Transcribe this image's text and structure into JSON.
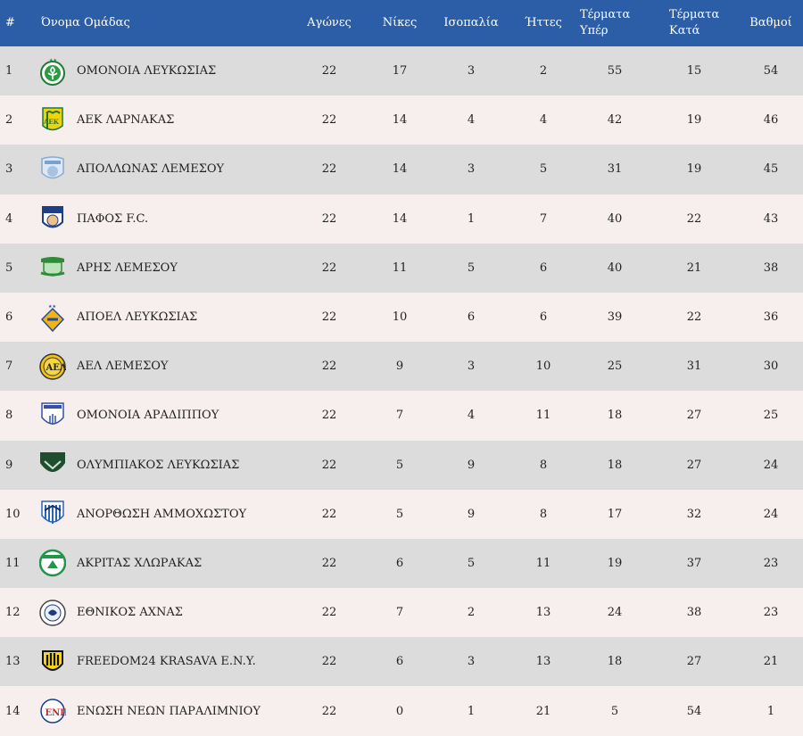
{
  "headers": {
    "pos": "#",
    "team": "Όνομα Ομάδας",
    "played": "Αγώνες",
    "wins": "Νίκες",
    "draws": "Ισοπαλία",
    "losses": "Ήττες",
    "gf_line1": "Τέρματα",
    "gf_line2": "Υπέρ",
    "ga_line1": "Τέρματα",
    "ga_line2": "Κατά",
    "points": "Βαθμοί"
  },
  "rows": [
    {
      "pos": "1",
      "team": "ΟΜΟΝΟΙΑ ΛΕΥΚΩΣΙΑΣ",
      "crest": "omonoia-crest-icon",
      "played": "22",
      "wins": "17",
      "draws": "3",
      "losses": "2",
      "gf": "55",
      "ga": "15",
      "points": "54"
    },
    {
      "pos": "2",
      "team": "ΑΕΚ ΛΑΡΝΑΚΑΣ",
      "crest": "aek-crest-icon",
      "played": "22",
      "wins": "14",
      "draws": "4",
      "losses": "4",
      "gf": "42",
      "ga": "19",
      "points": "46"
    },
    {
      "pos": "3",
      "team": "ΑΠΟΛΛΩΝΑΣ ΛΕΜΕΣΟΥ",
      "crest": "apollon-crest-icon",
      "played": "22",
      "wins": "14",
      "draws": "3",
      "losses": "5",
      "gf": "31",
      "ga": "19",
      "points": "45"
    },
    {
      "pos": "4",
      "team": "ΠΑΦΟΣ F.C.",
      "crest": "pafos-crest-icon",
      "played": "22",
      "wins": "14",
      "draws": "1",
      "losses": "7",
      "gf": "40",
      "ga": "22",
      "points": "43"
    },
    {
      "pos": "5",
      "team": "ΑΡΗΣ ΛΕΜΕΣΟΥ",
      "crest": "aris-crest-icon",
      "played": "22",
      "wins": "11",
      "draws": "5",
      "losses": "6",
      "gf": "40",
      "ga": "21",
      "points": "38"
    },
    {
      "pos": "6",
      "team": "ΑΠΟΕΛ ΛΕΥΚΩΣΙΑΣ",
      "crest": "apoel-crest-icon",
      "played": "22",
      "wins": "10",
      "draws": "6",
      "losses": "6",
      "gf": "39",
      "ga": "22",
      "points": "36"
    },
    {
      "pos": "7",
      "team": "ΑΕΛ ΛΕΜΕΣΟΥ",
      "crest": "ael-crest-icon",
      "played": "22",
      "wins": "9",
      "draws": "3",
      "losses": "10",
      "gf": "25",
      "ga": "31",
      "points": "30"
    },
    {
      "pos": "8",
      "team": "ΟΜΟΝΟΙΑ ΑΡΑΔΙΠΠΟΥ",
      "crest": "omonoia-aradippou-crest-icon",
      "played": "22",
      "wins": "7",
      "draws": "4",
      "losses": "11",
      "gf": "18",
      "ga": "27",
      "points": "25"
    },
    {
      "pos": "9",
      "team": "ΟΛΥΜΠΙΑΚΟΣ ΛΕΥΚΩΣΙΑΣ",
      "crest": "olympiakos-crest-icon",
      "played": "22",
      "wins": "5",
      "draws": "9",
      "losses": "8",
      "gf": "18",
      "ga": "27",
      "points": "24"
    },
    {
      "pos": "10",
      "team": "ΑΝΟΡΘΩΣΗ ΑΜΜΟΧΩΣΤΟΥ",
      "crest": "anorthosis-crest-icon",
      "played": "22",
      "wins": "5",
      "draws": "9",
      "losses": "8",
      "gf": "17",
      "ga": "32",
      "points": "24"
    },
    {
      "pos": "11",
      "team": "ΑΚΡΙΤΑΣ ΧΛΩΡΑΚΑΣ",
      "crest": "akritas-crest-icon",
      "played": "22",
      "wins": "6",
      "draws": "5",
      "losses": "11",
      "gf": "19",
      "ga": "37",
      "points": "23"
    },
    {
      "pos": "12",
      "team": "ΕΘΝΙΚΟΣ ΑΧΝΑΣ",
      "crest": "ethnikos-crest-icon",
      "played": "22",
      "wins": "7",
      "draws": "2",
      "losses": "13",
      "gf": "24",
      "ga": "38",
      "points": "23"
    },
    {
      "pos": "13",
      "team": "FREEDOM24 KRASAVA E.N.Y.",
      "crest": "krasava-crest-icon",
      "played": "22",
      "wins": "6",
      "draws": "3",
      "losses": "13",
      "gf": "18",
      "ga": "27",
      "points": "21"
    },
    {
      "pos": "14",
      "team": "ΕΝΩΣΗ ΝΕΩΝ ΠΑΡΑΛΙΜΝΙΟΥ",
      "crest": "enp-crest-icon",
      "played": "22",
      "wins": "0",
      "draws": "1",
      "losses": "21",
      "gf": "5",
      "ga": "54",
      "points": "1"
    }
  ]
}
